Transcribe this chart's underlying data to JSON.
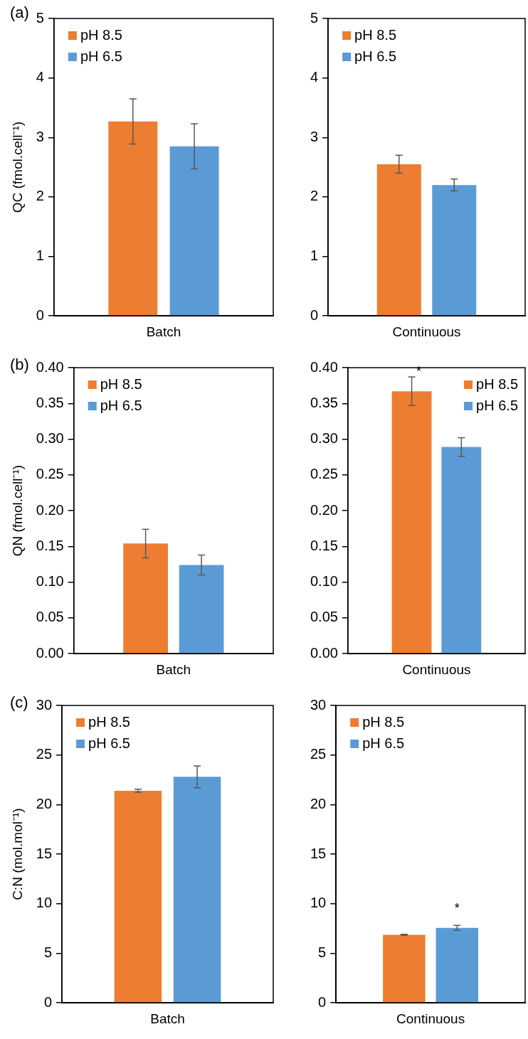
{
  "chart_data": [
    {
      "type": "bar",
      "title": "(a)",
      "ylabel": "QC (fmol.cell⁻¹)",
      "categories": [
        "Batch"
      ],
      "ylim": [
        0,
        5
      ],
      "yticks": [
        0,
        1,
        2,
        3,
        4,
        5
      ],
      "grid": false,
      "legend": "top left",
      "series": [
        {
          "name": "pH 8.5",
          "color": "#ed7d31",
          "values": [
            3.27
          ],
          "errors": [
            0.38
          ]
        },
        {
          "name": "pH 6.5",
          "color": "#5b9bd5",
          "values": [
            2.85
          ],
          "errors": [
            0.38
          ]
        }
      ]
    },
    {
      "type": "bar",
      "categories": [
        "Continuous"
      ],
      "ylim": [
        0,
        5
      ],
      "yticks": [
        0,
        1,
        2,
        3,
        4,
        5
      ],
      "grid": false,
      "legend": "top left",
      "series": [
        {
          "name": "pH 8.5",
          "color": "#ed7d31",
          "values": [
            2.55
          ],
          "errors": [
            0.15
          ]
        },
        {
          "name": "pH 6.5",
          "color": "#5b9bd5",
          "values": [
            2.2
          ],
          "errors": [
            0.1
          ]
        }
      ]
    },
    {
      "type": "bar",
      "title": "(b)",
      "ylabel": "QN (fmol.cell⁻¹)",
      "categories": [
        "Batch"
      ],
      "ylim": [
        0,
        0.4
      ],
      "yticks": [
        {
          "value": 0,
          "label": "0.00"
        },
        {
          "value": 0.05,
          "label": "0.05"
        },
        {
          "value": 0.1,
          "label": "0.10"
        },
        {
          "value": 0.15,
          "label": "0.15"
        },
        {
          "value": 0.2,
          "label": "0.20"
        },
        {
          "value": 0.25,
          "label": "0.25"
        },
        {
          "value": 0.3,
          "label": "0.30"
        },
        {
          "value": 0.35,
          "label": "0.35"
        },
        {
          "value": 0.4,
          "label": "0.40"
        }
      ],
      "grid": false,
      "legend": "top left",
      "series": [
        {
          "name": "pH 8.5",
          "color": "#ed7d31",
          "values": [
            0.154
          ],
          "errors": [
            0.02
          ]
        },
        {
          "name": "pH 6.5",
          "color": "#5b9bd5",
          "values": [
            0.124
          ],
          "errors": [
            0.014
          ]
        }
      ]
    },
    {
      "type": "bar",
      "categories": [
        "Continuous"
      ],
      "ylim": [
        0,
        0.4
      ],
      "yticks": [
        {
          "value": 0,
          "label": "0.00"
        },
        {
          "value": 0.05,
          "label": "0.05"
        },
        {
          "value": 0.1,
          "label": "0.10"
        },
        {
          "value": 0.15,
          "label": "0.15"
        },
        {
          "value": 0.2,
          "label": "0.20"
        },
        {
          "value": 0.25,
          "label": "0.25"
        },
        {
          "value": 0.3,
          "label": "0.30"
        },
        {
          "value": 0.35,
          "label": "0.35"
        },
        {
          "value": 0.4,
          "label": "0.40"
        }
      ],
      "grid": false,
      "legend": "top right",
      "annotations": [
        "*"
      ],
      "series": [
        {
          "name": "pH 8.5",
          "color": "#ed7d31",
          "values": [
            0.367
          ],
          "errors": [
            0.02
          ]
        },
        {
          "name": "pH 6.5",
          "color": "#5b9bd5",
          "values": [
            0.289
          ],
          "errors": [
            0.013
          ]
        }
      ]
    },
    {
      "type": "bar",
      "title": "(c)",
      "ylabel": "C:N (mol.mol⁻¹)",
      "categories": [
        "Batch"
      ],
      "ylim": [
        0,
        30
      ],
      "yticks": [
        0,
        5,
        10,
        15,
        20,
        25,
        30
      ],
      "grid": false,
      "legend": "top left",
      "series": [
        {
          "name": "pH 8.5",
          "color": "#ed7d31",
          "values": [
            21.4
          ],
          "errors": [
            0.15
          ]
        },
        {
          "name": "pH 6.5",
          "color": "#5b9bd5",
          "values": [
            22.8
          ],
          "errors": [
            1.1
          ]
        }
      ]
    },
    {
      "type": "bar",
      "categories": [
        "Continuous"
      ],
      "ylim": [
        0,
        30
      ],
      "yticks": [
        0,
        5,
        10,
        15,
        20,
        25,
        30
      ],
      "grid": false,
      "legend": "top left",
      "annotations": [
        "*"
      ],
      "series": [
        {
          "name": "pH 8.5",
          "color": "#ed7d31",
          "values": [
            6.87
          ],
          "errors": [
            0.05
          ]
        },
        {
          "name": "pH 6.5",
          "color": "#5b9bd5",
          "values": [
            7.56
          ],
          "errors": [
            0.25
          ]
        }
      ]
    }
  ]
}
